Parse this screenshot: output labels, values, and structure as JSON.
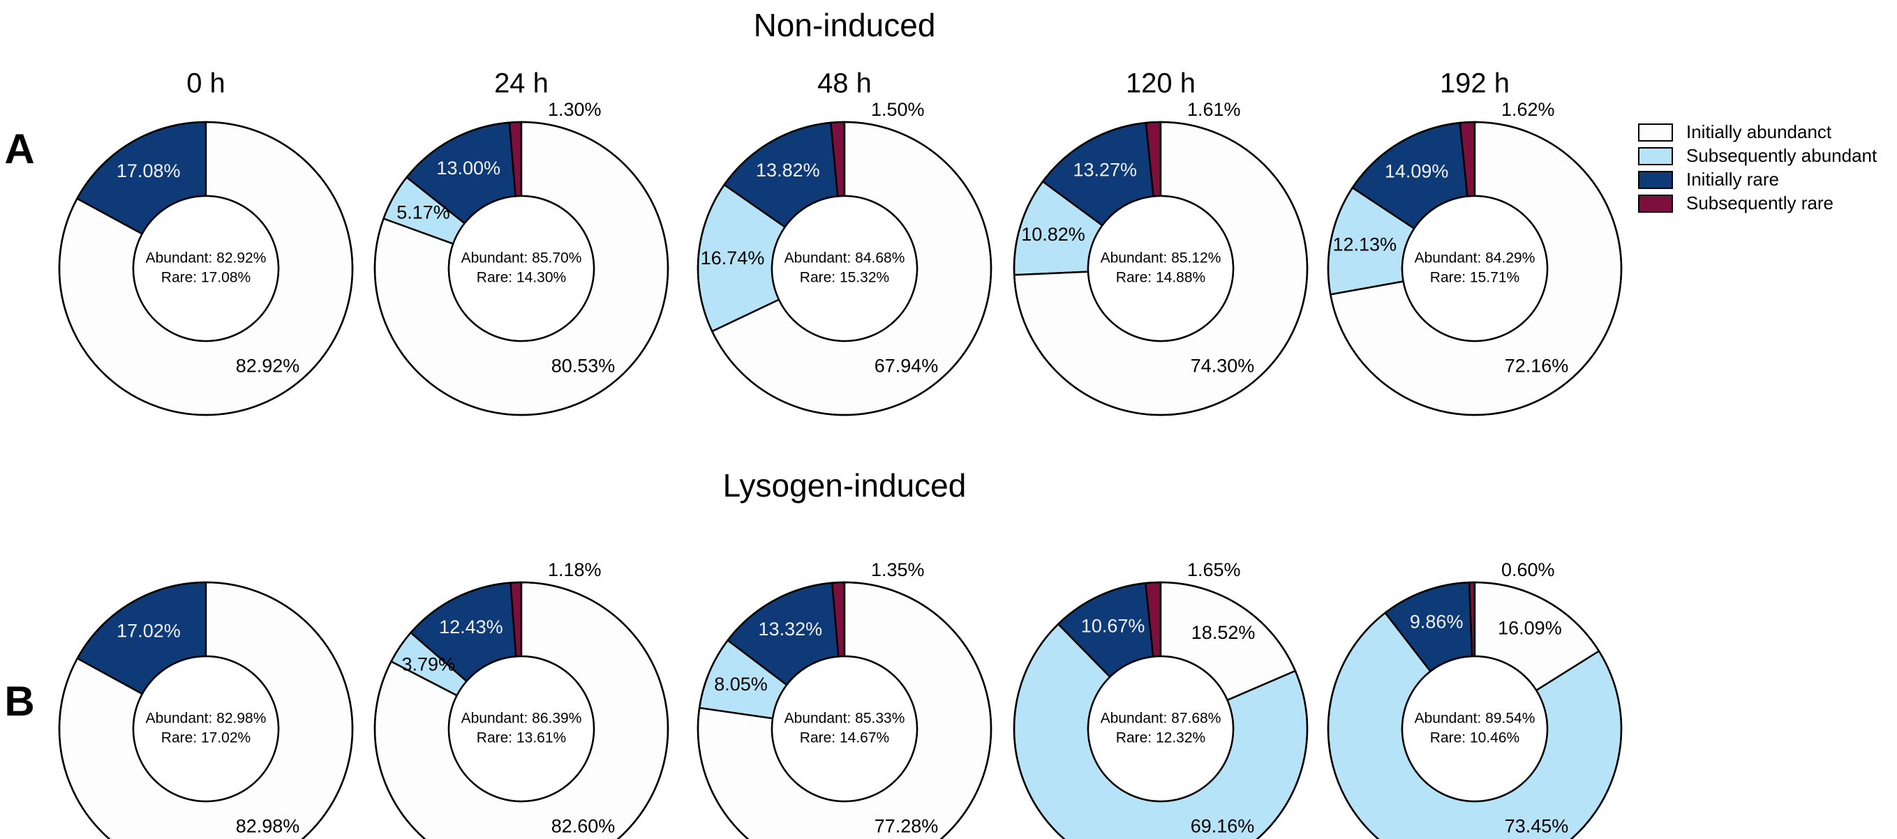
{
  "colors": {
    "Initially abundanct": "#fdfdfd",
    "Subsequently abundant": "#b6e3f7",
    "Initially rare": "#0e3a78",
    "Subsequently rare": "#7d0f3f"
  },
  "legend": {
    "items": [
      "Initially abundanct",
      "Subsequently abundant",
      "Initially rare",
      "Subsequently rare"
    ]
  },
  "chart_data": [
    {
      "type": "pie",
      "title": "Non-induced",
      "panel": "A",
      "categories": [
        "Initially abundanct",
        "Subsequently abundant",
        "Initially rare",
        "Subsequently rare"
      ],
      "charts": [
        {
          "time": "0 h",
          "values": [
            82.92,
            0,
            17.08,
            0
          ],
          "labels": [
            "82.92%",
            "",
            "17.08%",
            ""
          ],
          "summary": [
            "Abundant: 82.92%",
            "Rare: 17.08%"
          ]
        },
        {
          "time": "24 h",
          "values": [
            80.53,
            5.17,
            13.0,
            1.3
          ],
          "labels": [
            "80.53%",
            "5.17%",
            "13.00%",
            "1.30%"
          ],
          "summary": [
            "Abundant: 85.70%",
            "Rare: 14.30%"
          ]
        },
        {
          "time": "48 h",
          "values": [
            67.94,
            16.74,
            13.82,
            1.5
          ],
          "labels": [
            "67.94%",
            "16.74%",
            "13.82%",
            "1.50%"
          ],
          "summary": [
            "Abundant: 84.68%",
            "Rare: 15.32%"
          ]
        },
        {
          "time": "120 h",
          "values": [
            74.3,
            10.82,
            13.27,
            1.61
          ],
          "labels": [
            "74.30%",
            "10.82%",
            "13.27%",
            "1.61%"
          ],
          "summary": [
            "Abundant: 85.12%",
            "Rare: 14.88%"
          ]
        },
        {
          "time": "192 h",
          "values": [
            72.16,
            12.13,
            14.09,
            1.62
          ],
          "labels": [
            "72.16%",
            "12.13%",
            "14.09%",
            "1.62%"
          ],
          "summary": [
            "Abundant: 84.29%",
            "Rare: 15.71%"
          ]
        }
      ]
    },
    {
      "type": "pie",
      "title": "Lysogen-induced",
      "panel": "B",
      "categories": [
        "Initially abundanct",
        "Subsequently abundant",
        "Initially rare",
        "Subsequently rare"
      ],
      "charts": [
        {
          "time": "0 h",
          "values": [
            82.98,
            0,
            17.02,
            0
          ],
          "labels": [
            "82.98%",
            "",
            "17.02%",
            ""
          ],
          "summary": [
            "Abundant: 82.98%",
            "Rare: 17.02%"
          ]
        },
        {
          "time": "24 h",
          "values": [
            82.6,
            3.79,
            12.43,
            1.18
          ],
          "labels": [
            "82.60%",
            "3.79%",
            "12.43%",
            "1.18%"
          ],
          "summary": [
            "Abundant: 86.39%",
            "Rare: 13.61%"
          ]
        },
        {
          "time": "48 h",
          "values": [
            77.28,
            8.05,
            13.32,
            1.35
          ],
          "labels": [
            "77.28%",
            "8.05%",
            "13.32%",
            "1.35%"
          ],
          "summary": [
            "Abundant: 85.33%",
            "Rare: 14.67%"
          ]
        },
        {
          "time": "120 h",
          "values": [
            18.52,
            69.16,
            10.67,
            1.65
          ],
          "labels": [
            "18.52%",
            "69.16%",
            "10.67%",
            "1.65%"
          ],
          "summary": [
            "Abundant: 87.68%",
            "Rare: 12.32%"
          ]
        },
        {
          "time": "192 h",
          "values": [
            16.09,
            73.45,
            9.86,
            0.6
          ],
          "labels": [
            "16.09%",
            "73.45%",
            "9.86%",
            "0.60%"
          ],
          "summary": [
            "Abundant: 89.54%",
            "Rare: 10.46%"
          ]
        }
      ]
    }
  ]
}
